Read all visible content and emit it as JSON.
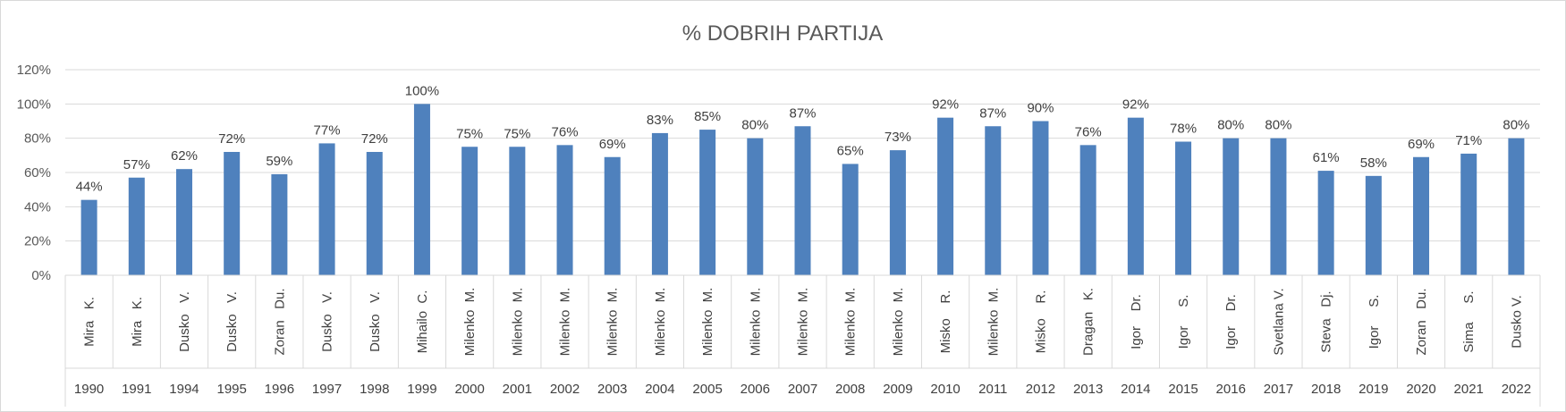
{
  "chart_data": {
    "type": "bar",
    "title": "% DOBRIH PARTIJA",
    "xlabel": "",
    "ylabel": "",
    "ylim": [
      0,
      120
    ],
    "y_ticks": [
      "0%",
      "20%",
      "40%",
      "60%",
      "80%",
      "100%",
      "120%"
    ],
    "grid": true,
    "legend": "none",
    "bar_color": "#4f81bd",
    "categories": [
      {
        "name": "Mira   K.",
        "year": "1990"
      },
      {
        "name": "Mira   K.",
        "year": "1991"
      },
      {
        "name": "Dusko   V.",
        "year": "1994"
      },
      {
        "name": "Dusko   V.",
        "year": "1995"
      },
      {
        "name": "Zoran   Du.",
        "year": "1996"
      },
      {
        "name": "Dusko   V.",
        "year": "1997"
      },
      {
        "name": "Dusko   V.",
        "year": "1998"
      },
      {
        "name": "Mihailo  C.",
        "year": "1999"
      },
      {
        "name": "Milenko  M.",
        "year": "2000"
      },
      {
        "name": "Milenko  M.",
        "year": "2001"
      },
      {
        "name": "Milenko  M.",
        "year": "2002"
      },
      {
        "name": "Milenko  M.",
        "year": "2003"
      },
      {
        "name": "Milenko  M.",
        "year": "2004"
      },
      {
        "name": "Milenko  M.",
        "year": "2005"
      },
      {
        "name": "Milenko  M.",
        "year": "2006"
      },
      {
        "name": "Milenko  M.",
        "year": "2007"
      },
      {
        "name": "Milenko  M.",
        "year": "2008"
      },
      {
        "name": "Milenko  M.",
        "year": "2009"
      },
      {
        "name": "Misko    R.",
        "year": "2010"
      },
      {
        "name": "Milenko  M.",
        "year": "2011"
      },
      {
        "name": "Misko    R.",
        "year": "2012"
      },
      {
        "name": "Dragan   K.",
        "year": "2013"
      },
      {
        "name": "Igor    Dr.",
        "year": "2014"
      },
      {
        "name": "Igor     S.",
        "year": "2015"
      },
      {
        "name": "Igor    Dr.",
        "year": "2016"
      },
      {
        "name": "Svetlana V.",
        "year": "2017"
      },
      {
        "name": "Steva   Dj.",
        "year": "2018"
      },
      {
        "name": "Igor     S.",
        "year": "2019"
      },
      {
        "name": "Zoran   Du.",
        "year": "2020"
      },
      {
        "name": "Sima     S.",
        "year": "2021"
      },
      {
        "name": "Dusko V.",
        "year": "2022"
      }
    ],
    "values": [
      44,
      57,
      62,
      72,
      59,
      77,
      72,
      100,
      75,
      75,
      76,
      69,
      83,
      85,
      80,
      87,
      65,
      73,
      92,
      87,
      90,
      76,
      92,
      78,
      80,
      80,
      61,
      58,
      69,
      71,
      80
    ],
    "data_labels": [
      "44%",
      "57%",
      "62%",
      "72%",
      "59%",
      "77%",
      "72%",
      "100%",
      "75%",
      "75%",
      "76%",
      "69%",
      "83%",
      "85%",
      "80%",
      "87%",
      "65%",
      "73%",
      "92%",
      "87%",
      "90%",
      "76%",
      "92%",
      "78%",
      "80%",
      "80%",
      "61%",
      "58%",
      "69%",
      "71%",
      "80%"
    ]
  }
}
